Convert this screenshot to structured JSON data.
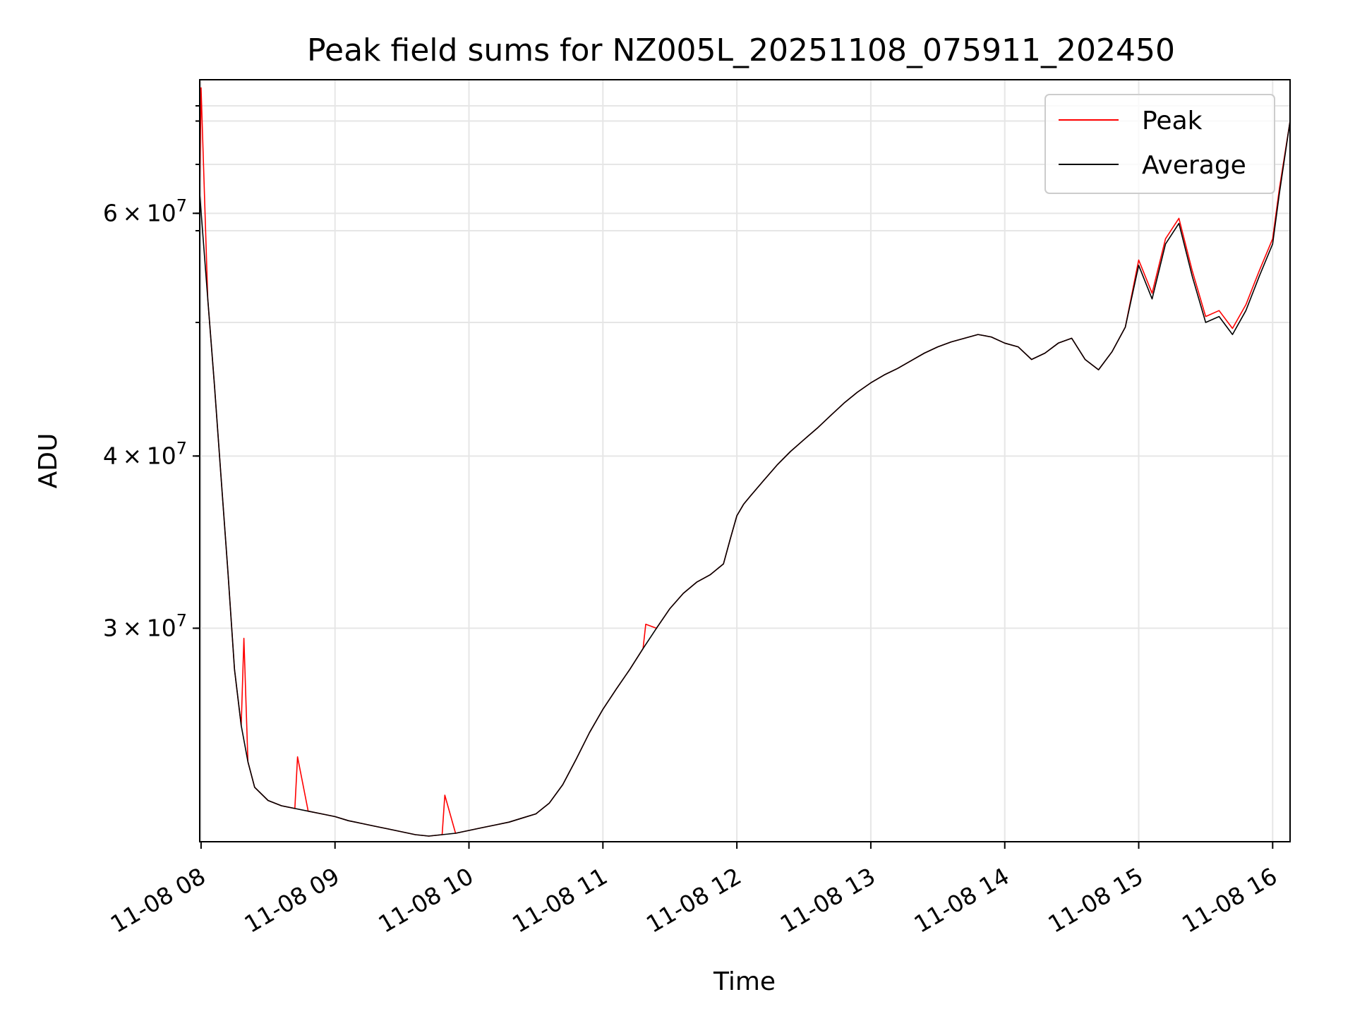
{
  "chart_data": {
    "type": "line",
    "title": "Peak field sums for NZ005L_20251108_075911_202450",
    "xlabel": "Time",
    "ylabel": "ADU",
    "yscale": "log",
    "ylim": [
      21000000,
      75000000
    ],
    "xlim_hours": [
      7.99,
      16.13
    ],
    "x_ticks": [
      {
        "hour": 8,
        "label": "11-08 08"
      },
      {
        "hour": 9,
        "label": "11-08 09"
      },
      {
        "hour": 10,
        "label": "11-08 10"
      },
      {
        "hour": 11,
        "label": "11-08 11"
      },
      {
        "hour": 12,
        "label": "11-08 12"
      },
      {
        "hour": 13,
        "label": "11-08 13"
      },
      {
        "hour": 14,
        "label": "11-08 14"
      },
      {
        "hour": 15,
        "label": "11-08 15"
      },
      {
        "hour": 16,
        "label": "11-08 16"
      }
    ],
    "y_major_ticks": [
      {
        "value": 30000000,
        "mantissa": "3",
        "exponent": "7"
      },
      {
        "value": 40000000,
        "mantissa": "4",
        "exponent": "7"
      },
      {
        "value": 60000000,
        "mantissa": "6",
        "exponent": "7"
      }
    ],
    "y_times_symbol": "×",
    "y_base": "10",
    "y_minor_ticks": [
      50000000,
      70000000
    ],
    "legend": {
      "position": "upper right",
      "entries": [
        "Peak",
        "Average"
      ]
    },
    "series": [
      {
        "name": "Average",
        "color": "#000000",
        "hours": [
          7.99,
          8.05,
          8.1,
          8.15,
          8.2,
          8.25,
          8.3,
          8.35,
          8.4,
          8.5,
          8.6,
          8.7,
          8.8,
          8.9,
          9.0,
          9.1,
          9.2,
          9.3,
          9.4,
          9.5,
          9.6,
          9.7,
          9.8,
          9.9,
          10.0,
          10.1,
          10.2,
          10.3,
          10.4,
          10.5,
          10.6,
          10.7,
          10.8,
          10.9,
          11.0,
          11.1,
          11.2,
          11.3,
          11.4,
          11.5,
          11.6,
          11.7,
          11.8,
          11.9,
          11.95,
          12.0,
          12.05,
          12.1,
          12.2,
          12.3,
          12.4,
          12.5,
          12.6,
          12.7,
          12.8,
          12.9,
          13.0,
          13.1,
          13.2,
          13.3,
          13.4,
          13.5,
          13.6,
          13.7,
          13.8,
          13.9,
          14.0,
          14.1,
          14.2,
          14.3,
          14.4,
          14.5,
          14.6,
          14.7,
          14.8,
          14.9,
          15.0,
          15.1,
          15.2,
          15.3,
          15.4,
          15.5,
          15.6,
          15.7,
          15.8,
          15.9,
          16.0,
          16.05,
          16.13
        ],
        "values": [
          62000000,
          52000000,
          45000000,
          38500000,
          33000000,
          28000000,
          25500000,
          24000000,
          23000000,
          22500000,
          22300000,
          22200000,
          22100000,
          22000000,
          21900000,
          21750000,
          21650000,
          21550000,
          21450000,
          21350000,
          21250000,
          21200000,
          21250000,
          21300000,
          21400000,
          21500000,
          21600000,
          21700000,
          21850000,
          22000000,
          22400000,
          23100000,
          24100000,
          25200000,
          26200000,
          27100000,
          28000000,
          29000000,
          30000000,
          31000000,
          31800000,
          32400000,
          32800000,
          33400000,
          34800000,
          36200000,
          36900000,
          37400000,
          38400000,
          39400000,
          40300000,
          41100000,
          41900000,
          42800000,
          43700000,
          44500000,
          45200000,
          45800000,
          46300000,
          46900000,
          47500000,
          48000000,
          48400000,
          48700000,
          49000000,
          48800000,
          48300000,
          48000000,
          47000000,
          47500000,
          48300000,
          48700000,
          47000000,
          46200000,
          47600000,
          49600000,
          55000000,
          52000000,
          57000000,
          59000000,
          54000000,
          50000000,
          50500000,
          49000000,
          51000000,
          54000000,
          57000000,
          62000000,
          70000000
        ]
      },
      {
        "name": "Peak",
        "color": "#ff0000",
        "hours": [
          7.99,
          8.0,
          8.05,
          8.1,
          8.15,
          8.2,
          8.25,
          8.3,
          8.32,
          8.35,
          8.4,
          8.5,
          8.6,
          8.7,
          8.72,
          8.8,
          8.9,
          9.0,
          9.1,
          9.2,
          9.3,
          9.4,
          9.5,
          9.6,
          9.7,
          9.8,
          9.82,
          9.9,
          10.0,
          10.1,
          10.2,
          10.3,
          10.4,
          10.5,
          10.6,
          10.7,
          10.8,
          10.9,
          11.0,
          11.1,
          11.2,
          11.3,
          11.32,
          11.4,
          11.5,
          11.6,
          11.7,
          11.8,
          11.9,
          11.95,
          12.0,
          12.05,
          12.1,
          12.2,
          12.3,
          12.4,
          12.5,
          12.6,
          12.7,
          12.8,
          12.9,
          13.0,
          13.1,
          13.2,
          13.3,
          13.4,
          13.5,
          13.6,
          13.7,
          13.8,
          13.9,
          14.0,
          14.1,
          14.2,
          14.3,
          14.4,
          14.5,
          14.6,
          14.7,
          14.8,
          14.9,
          15.0,
          15.1,
          15.2,
          15.3,
          15.4,
          15.5,
          15.6,
          15.7,
          15.8,
          15.9,
          16.0,
          16.05,
          16.13
        ],
        "values": [
          62000000,
          74000000,
          52000000,
          45000000,
          38500000,
          33000000,
          28000000,
          25500000,
          29500000,
          24000000,
          23000000,
          22500000,
          22300000,
          22200000,
          24200000,
          22100000,
          22000000,
          21900000,
          21750000,
          21650000,
          21550000,
          21450000,
          21350000,
          21250000,
          21200000,
          21250000,
          22700000,
          21300000,
          21400000,
          21500000,
          21600000,
          21700000,
          21850000,
          22000000,
          22400000,
          23100000,
          24100000,
          25200000,
          26200000,
          27100000,
          28000000,
          29000000,
          30200000,
          30000000,
          31000000,
          31800000,
          32400000,
          32800000,
          33400000,
          34800000,
          36200000,
          36900000,
          37400000,
          38400000,
          39400000,
          40300000,
          41100000,
          41900000,
          42800000,
          43700000,
          44500000,
          45200000,
          45800000,
          46300000,
          46900000,
          47500000,
          48000000,
          48400000,
          48700000,
          49000000,
          48800000,
          48300000,
          48000000,
          47000000,
          47500000,
          48300000,
          48700000,
          47000000,
          46200000,
          47600000,
          49600000,
          55500000,
          52500000,
          57500000,
          59500000,
          54500000,
          50500000,
          51000000,
          49500000,
          51500000,
          54500000,
          57500000,
          62500000,
          70000000
        ]
      }
    ]
  }
}
